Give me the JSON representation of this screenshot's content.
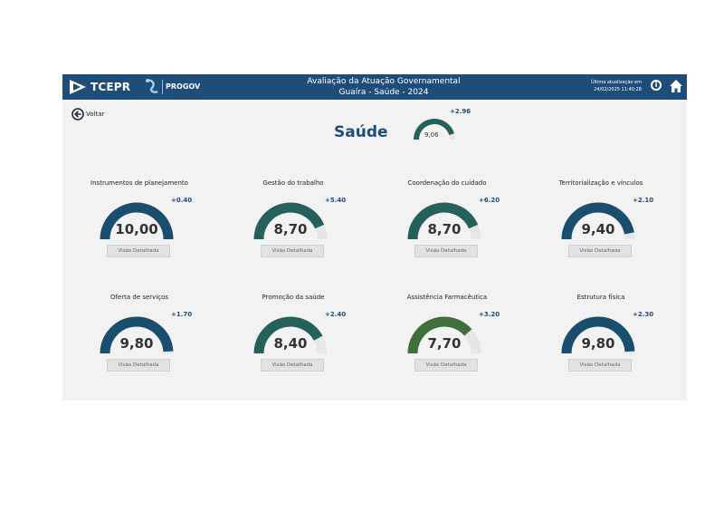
{
  "header": {
    "brand": "TCEPR",
    "progov": "PROGOV",
    "title_line1": "Avaliação da Atuação Governamental",
    "title_line2": "Guaíra - Saúde - 2024",
    "update_label": "Última atualização em",
    "update_value": "24/02/2025 11:40:28",
    "info_icon": "info-icon",
    "home_icon": "home-icon",
    "bar_color": "#1e4d7a"
  },
  "nav": {
    "back_label": "Voltar",
    "back_icon": "arrow-left-circle-icon"
  },
  "page": {
    "title": "Saúde",
    "score": "9,06",
    "delta": "+2.96",
    "score_fraction": 0.906
  },
  "colors": {
    "dark_blue": "#1a4e6e",
    "teal": "#23615a",
    "green": "#3f6f3a",
    "track": "#e6e6e6"
  },
  "cards": [
    {
      "title": "Instrumentos de planejamento",
      "score": "10,00",
      "delta": "+0.40",
      "button": "Visão Detalhada",
      "fraction": 1.0,
      "color": "#1a4e6e"
    },
    {
      "title": "Gestão do trabalho",
      "score": "8,70",
      "delta": "+5.40",
      "button": "Visão Detalhada",
      "fraction": 0.87,
      "color": "#23615a"
    },
    {
      "title": "Coordenação do cuidado",
      "score": "8,70",
      "delta": "+6.20",
      "button": "Visão Detalhada",
      "fraction": 0.87,
      "color": "#23615a"
    },
    {
      "title": "Territorialização e vínculos",
      "score": "9,40",
      "delta": "+2.10",
      "button": "Visão Detalhada",
      "fraction": 0.94,
      "color": "#1a4e6e"
    },
    {
      "title": "Oferta de serviços",
      "score": "9,80",
      "delta": "+1.70",
      "button": "Visão Detalhada",
      "fraction": 0.98,
      "color": "#1a4e6e"
    },
    {
      "title": "Promoção da saúde",
      "score": "8,40",
      "delta": "+2.40",
      "button": "Visão Detalhada",
      "fraction": 0.84,
      "color": "#23615a"
    },
    {
      "title": "Assistência Farmacêutica",
      "score": "7,70",
      "delta": "+3.20",
      "button": "Visão Detalhada",
      "fraction": 0.77,
      "color": "#3f6f3a"
    },
    {
      "title": "Estrutura física",
      "score": "9,80",
      "delta": "+2.30",
      "button": "Visão Detalhada",
      "fraction": 0.98,
      "color": "#1a4e6e"
    }
  ]
}
